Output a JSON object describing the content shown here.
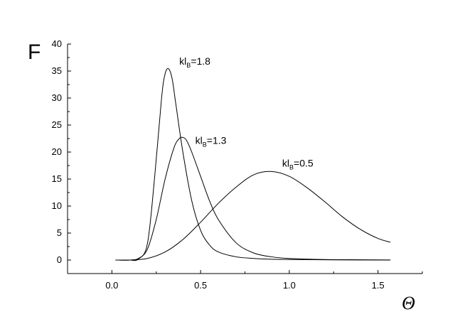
{
  "chart_data": {
    "type": "line",
    "title": "",
    "xlabel": "Θ",
    "ylabel": "F",
    "xlim": [
      -0.25,
      1.75
    ],
    "ylim": [
      -2.5,
      40
    ],
    "x_ticks": [
      0.0,
      0.5,
      1.0,
      1.5
    ],
    "x_tick_labels": [
      "0.0",
      "0.5",
      "1.0",
      "1.5"
    ],
    "y_ticks": [
      0,
      5,
      10,
      15,
      20,
      25,
      30,
      35,
      40
    ],
    "y_tick_labels": [
      "0",
      "5",
      "10",
      "15",
      "20",
      "25",
      "30",
      "35",
      "40"
    ],
    "grid": false,
    "legend": "none",
    "series": [
      {
        "name": "klB=1.8",
        "annotation": {
          "main": "kl",
          "sub": "B",
          "tail": "=1.8"
        },
        "label_at": [
          0.38,
          36.2
        ],
        "x": [
          0.02,
          0.1,
          0.15,
          0.2,
          0.24,
          0.28,
          0.3,
          0.32,
          0.34,
          0.36,
          0.4,
          0.45,
          0.5,
          0.55,
          0.6,
          0.7,
          0.8,
          0.9,
          1.0,
          1.2,
          1.4,
          1.57
        ],
        "y": [
          0.0,
          0.0,
          0.2,
          3.0,
          15.0,
          30.0,
          34.5,
          35.4,
          33.5,
          29.0,
          20.0,
          11.0,
          5.5,
          2.8,
          1.5,
          0.6,
          0.3,
          0.15,
          0.1,
          0.05,
          0.02,
          0.0
        ]
      },
      {
        "name": "klB=1.3",
        "annotation": {
          "main": "kl",
          "sub": "B",
          "tail": "=1.3"
        },
        "label_at": [
          0.47,
          21.5
        ],
        "x": [
          0.02,
          0.1,
          0.15,
          0.2,
          0.25,
          0.3,
          0.35,
          0.38,
          0.4,
          0.42,
          0.45,
          0.5,
          0.55,
          0.6,
          0.7,
          0.8,
          0.9,
          1.0,
          1.2,
          1.4,
          1.57
        ],
        "y": [
          0.0,
          0.0,
          0.3,
          2.0,
          7.5,
          15.0,
          20.8,
          22.5,
          22.7,
          22.2,
          20.0,
          15.5,
          11.0,
          7.5,
          3.2,
          1.3,
          0.6,
          0.3,
          0.1,
          0.05,
          0.02
        ]
      },
      {
        "name": "klB=0.5",
        "annotation": {
          "main": "kl",
          "sub": "B",
          "tail": "=0.5"
        },
        "label_at": [
          0.96,
          17.3
        ],
        "x": [
          0.02,
          0.1,
          0.2,
          0.3,
          0.4,
          0.5,
          0.6,
          0.7,
          0.8,
          0.9,
          1.0,
          1.1,
          1.2,
          1.3,
          1.4,
          1.5,
          1.57
        ],
        "y": [
          0.0,
          0.0,
          0.3,
          1.5,
          3.8,
          7.0,
          10.5,
          13.5,
          15.8,
          16.4,
          15.5,
          13.4,
          10.8,
          8.0,
          5.7,
          4.0,
          3.3
        ]
      }
    ]
  }
}
